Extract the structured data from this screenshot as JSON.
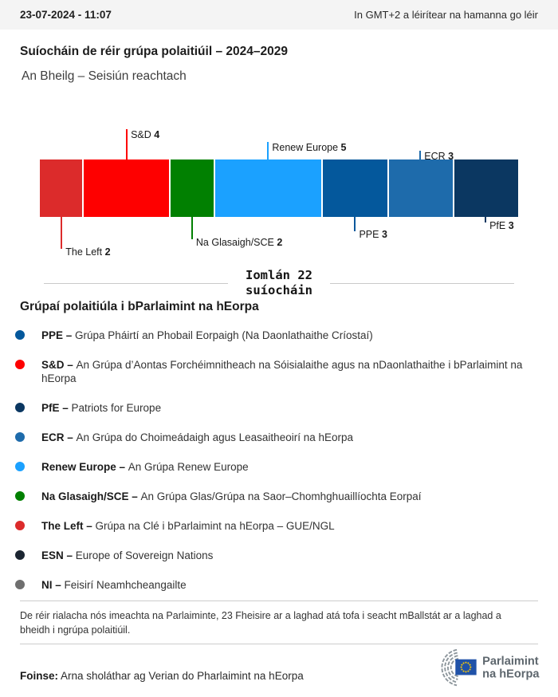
{
  "header": {
    "datetime": "23-07-2024 - 11:07",
    "timezone_note": "In GMT+2 a léirítear na hamanna go léir"
  },
  "title": "Suíocháin de réir grúpa polaitiúil – 2024–2029",
  "subtitle": "An Bheilg – Seisiún reachtach",
  "chart_data": {
    "type": "bar",
    "variant": "horizontal-stacked-seat-bar",
    "title": "Suíocháin de réir grúpa polaitiúil – 2024–2029",
    "total_seats": 22,
    "total_label_line1": "Iomlán 22",
    "total_label_line2": "suíocháin",
    "categories": [
      "The Left",
      "S&D",
      "Na Glasaigh/SCE",
      "Renew Europe",
      "PPE",
      "ECR",
      "PfE"
    ],
    "values": [
      2,
      4,
      2,
      5,
      3,
      3,
      3
    ],
    "segments": [
      {
        "name": "The Left",
        "seats": 2,
        "color": "#dc2b2b",
        "label_side": "below",
        "tick_len": 40
      },
      {
        "name": "S&D",
        "seats": 4,
        "color": "#fe0000",
        "label_side": "above",
        "tick_len": 38
      },
      {
        "name": "Na Glasaigh/SCE",
        "seats": 2,
        "color": "#018001",
        "label_side": "below",
        "tick_len": 28
      },
      {
        "name": "Renew Europe",
        "seats": 5,
        "color": "#1ba1ff",
        "label_side": "above",
        "tick_len": 22
      },
      {
        "name": "PPE",
        "seats": 3,
        "color": "#04589c",
        "label_side": "below",
        "tick_len": 18
      },
      {
        "name": "ECR",
        "seats": 3,
        "color": "#1e6bab",
        "label_side": "above",
        "tick_len": 11
      },
      {
        "name": "PfE",
        "seats": 3,
        "color": "#0b3761",
        "label_side": "below",
        "tick_len": 7
      }
    ],
    "legend_position": "below"
  },
  "legend": {
    "heading": "Grúpaí polaitiúla i bParlaimint na hEorpa",
    "items": [
      {
        "abbr": "PPE –",
        "desc": "Grúpa Pháirtí an Phobail Eorpaigh (Na Daonlathaithe Críostaí)",
        "color": "#04589c"
      },
      {
        "abbr": "S&D –",
        "desc": "An Grúpa d’Aontas Forchéimnitheach na Sóisialaithe agus na nDaonlathaithe i bParlaimint na hEorpa",
        "color": "#fe0000"
      },
      {
        "abbr": "PfE –",
        "desc": "Patriots for Europe",
        "color": "#0b3761"
      },
      {
        "abbr": "ECR –",
        "desc": "An Grúpa do Choimeádaigh agus Leasaitheoirí na hEorpa",
        "color": "#1e6bab"
      },
      {
        "abbr": "Renew Europe –",
        "desc": "An Grúpa Renew Europe",
        "color": "#1ba1ff"
      },
      {
        "abbr": "Na Glasaigh/SCE –",
        "desc": "An Grúpa Glas/Grúpa na Saor–Chomhghuaillíochta Eorpaí",
        "color": "#018001"
      },
      {
        "abbr": "The Left –",
        "desc": "Grúpa na Clé i bParlaimint na hEorpa – GUE/NGL",
        "color": "#dc2b2b"
      },
      {
        "abbr": "ESN –",
        "desc": "Europe of Sovereign Nations",
        "color": "#1b2531"
      },
      {
        "abbr": "NI –",
        "desc": "Feisirí Neamhcheangailte",
        "color": "#6f6f6f"
      }
    ]
  },
  "footnote": "De réir rialacha nós imeachta na Parlaiminte, 23 Fheisire ar a laghad atá tofa i seacht mBallstát ar a laghad a bheidh i ngrúpa polaitiúil.",
  "source": {
    "label": "Foinse:",
    "text": " Arna sholáthar ag Verian do Pharlaimint na hEorpa"
  },
  "logo": {
    "line1": "Parlaimint",
    "line2": "na hEorpa",
    "text_color": "#5d666d",
    "flag_blue": "#2052a8",
    "star_yellow": "#ffcc00",
    "arc_gray": "#8d969c"
  }
}
